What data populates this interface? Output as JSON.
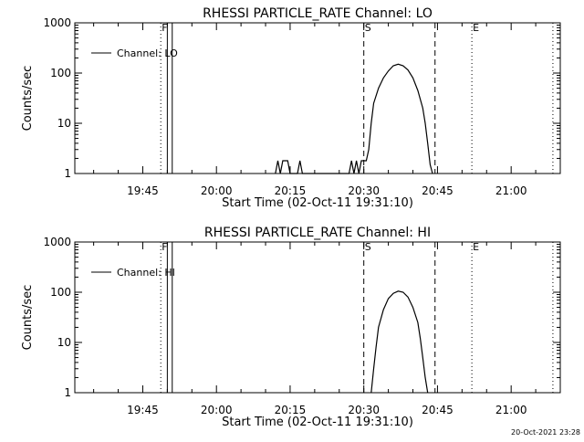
{
  "footer": "20-Oct-2021 23:28",
  "panels": [
    {
      "title": "RHESSI PARTICLE_RATE Channel: LO",
      "xlabel": "Start Time (02-Oct-11 19:31:10)",
      "ylabel": "Counts/sec",
      "legend": "Channel: LO"
    },
    {
      "title": "RHESSI PARTICLE_RATE Channel: HI",
      "xlabel": "Start Time (02-Oct-11 19:31:10)",
      "ylabel": "Counts/sec",
      "legend": "Channel: HI"
    }
  ],
  "chart_data": [
    {
      "type": "line",
      "title": "RHESSI PARTICLE_RATE Channel: LO",
      "xlabel": "Start Time (02-Oct-11 19:31:10)",
      "ylabel": "Counts/sec",
      "yscale": "log",
      "xlim": [
        "19:31:10",
        "21:10:00"
      ],
      "ylim": [
        1,
        1000
      ],
      "x_ticks": [
        "19:45",
        "20:00",
        "20:15",
        "20:30",
        "20:45",
        "21:00"
      ],
      "y_ticks": [
        "1",
        "10",
        "100",
        "1000"
      ],
      "legend_position": "top-left",
      "markers": [
        {
          "label": "F",
          "time": "19:48:40",
          "style": "dotted"
        },
        {
          "label": "",
          "time": "19:50:00",
          "style": "solid"
        },
        {
          "label": "",
          "time": "19:51:00",
          "style": "solid"
        },
        {
          "label": "S",
          "time": "20:30:00",
          "style": "dashed"
        },
        {
          "label": "",
          "time": "20:44:30",
          "style": "dashed"
        },
        {
          "label": "E",
          "time": "20:52:00",
          "style": "dotted"
        },
        {
          "label": "",
          "time": "21:08:30",
          "style": "dotted"
        }
      ],
      "series": [
        {
          "name": "Channel: LO",
          "points": [
            [
              "20:12:00",
              1
            ],
            [
              "20:12:30",
              1.8
            ],
            [
              "20:13:00",
              1
            ],
            [
              "20:13:30",
              1.8
            ],
            [
              "20:14:30",
              1.8
            ],
            [
              "20:15:00",
              1
            ],
            [
              "20:16:30",
              1
            ],
            [
              "20:17:00",
              1.8
            ],
            [
              "20:17:30",
              1
            ],
            [
              "20:27:00",
              1
            ],
            [
              "20:27:30",
              1.8
            ],
            [
              "20:28:00",
              1
            ],
            [
              "20:28:30",
              1.8
            ],
            [
              "20:29:00",
              1
            ],
            [
              "20:29:30",
              1.8
            ],
            [
              "20:30:30",
              1.8
            ],
            [
              "20:31:00",
              3
            ],
            [
              "20:31:30",
              10
            ],
            [
              "20:32:00",
              25
            ],
            [
              "20:33:00",
              50
            ],
            [
              "20:34:00",
              80
            ],
            [
              "20:35:00",
              110
            ],
            [
              "20:36:00",
              140
            ],
            [
              "20:37:00",
              150
            ],
            [
              "20:38:00",
              140
            ],
            [
              "20:39:00",
              115
            ],
            [
              "20:40:00",
              80
            ],
            [
              "20:41:00",
              45
            ],
            [
              "20:42:00",
              20
            ],
            [
              "20:42:30",
              10
            ],
            [
              "20:43:00",
              4
            ],
            [
              "20:43:30",
              1.5
            ],
            [
              "20:44:00",
              1
            ]
          ]
        }
      ]
    },
    {
      "type": "line",
      "title": "RHESSI PARTICLE_RATE Channel: HI",
      "xlabel": "Start Time (02-Oct-11 19:31:10)",
      "ylabel": "Counts/sec",
      "yscale": "log",
      "xlim": [
        "19:31:10",
        "21:10:00"
      ],
      "ylim": [
        1,
        1000
      ],
      "x_ticks": [
        "19:45",
        "20:00",
        "20:15",
        "20:30",
        "20:45",
        "21:00"
      ],
      "y_ticks": [
        "1",
        "10",
        "100",
        "1000"
      ],
      "legend_position": "top-left",
      "markers": [
        {
          "label": "F",
          "time": "19:48:40",
          "style": "dotted"
        },
        {
          "label": "",
          "time": "19:50:00",
          "style": "solid"
        },
        {
          "label": "",
          "time": "19:51:00",
          "style": "solid"
        },
        {
          "label": "S",
          "time": "20:30:00",
          "style": "dashed"
        },
        {
          "label": "",
          "time": "20:44:30",
          "style": "dashed"
        },
        {
          "label": "E",
          "time": "20:52:00",
          "style": "dotted"
        },
        {
          "label": "",
          "time": "21:08:30",
          "style": "dotted"
        }
      ],
      "series": [
        {
          "name": "Channel: HI",
          "points": [
            [
              "20:31:30",
              1
            ],
            [
              "20:32:00",
              3
            ],
            [
              "20:32:30",
              8
            ],
            [
              "20:33:00",
              20
            ],
            [
              "20:34:00",
              45
            ],
            [
              "20:35:00",
              75
            ],
            [
              "20:36:00",
              95
            ],
            [
              "20:37:00",
              105
            ],
            [
              "20:38:00",
              100
            ],
            [
              "20:39:00",
              80
            ],
            [
              "20:40:00",
              50
            ],
            [
              "20:41:00",
              25
            ],
            [
              "20:41:30",
              12
            ],
            [
              "20:42:00",
              5
            ],
            [
              "20:42:30",
              2
            ],
            [
              "20:43:00",
              1
            ]
          ]
        }
      ]
    }
  ]
}
